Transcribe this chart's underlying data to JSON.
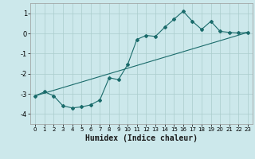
{
  "xlabel": "Humidex (Indice chaleur)",
  "ylabel": "",
  "background_color": "#cce8eb",
  "grid_color": "#aacccc",
  "line_color": "#1a6b6b",
  "xlim": [
    -0.5,
    23.5
  ],
  "ylim": [
    -4.5,
    1.5
  ],
  "yticks": [
    -4,
    -3,
    -2,
    -1,
    0,
    1
  ],
  "xticks": [
    0,
    1,
    2,
    3,
    4,
    5,
    6,
    7,
    8,
    9,
    10,
    11,
    12,
    13,
    14,
    15,
    16,
    17,
    18,
    19,
    20,
    21,
    22,
    23
  ],
  "line1_x": [
    0,
    1,
    2,
    3,
    4,
    5,
    6,
    7,
    8,
    9,
    10,
    11,
    12,
    13,
    14,
    15,
    16,
    17,
    18,
    19,
    20,
    21,
    22,
    23
  ],
  "line1_y": [
    -3.1,
    -2.9,
    -3.1,
    -3.6,
    -3.7,
    -3.65,
    -3.55,
    -3.3,
    -2.2,
    -2.3,
    -1.55,
    -0.3,
    -0.1,
    -0.15,
    0.3,
    0.7,
    1.1,
    0.6,
    0.2,
    0.6,
    0.1,
    0.05,
    0.02,
    0.05
  ],
  "line2_x": [
    0,
    23
  ],
  "line2_y": [
    -3.1,
    0.05
  ]
}
